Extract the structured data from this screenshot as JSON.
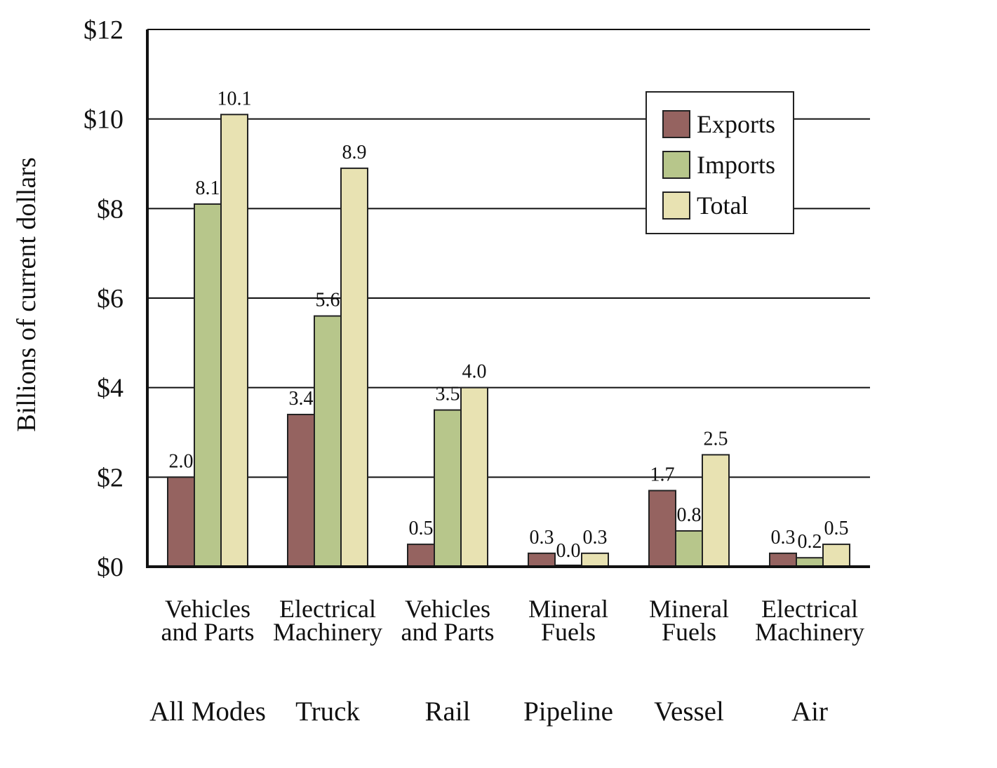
{
  "chart_data": {
    "type": "bar",
    "title": "",
    "ylabel": "Billions of current dollars",
    "ylim": [
      0,
      12
    ],
    "y_ticks": [
      0,
      2,
      4,
      6,
      8,
      10,
      12
    ],
    "y_tick_labels": [
      "$0",
      "$2",
      "$4",
      "$6",
      "$8",
      "$10",
      "$12"
    ],
    "grid": true,
    "legend_position": "top-right",
    "categories": [
      {
        "label_lines": [
          "Vehicles",
          "and Parts"
        ],
        "group": "All Modes"
      },
      {
        "label_lines": [
          "Electrical",
          "Machinery"
        ],
        "group": "Truck"
      },
      {
        "label_lines": [
          "Vehicles",
          "and Parts"
        ],
        "group": "Rail"
      },
      {
        "label_lines": [
          "Mineral",
          "Fuels"
        ],
        "group": "Pipeline"
      },
      {
        "label_lines": [
          "Mineral",
          "Fuels"
        ],
        "group": "Vessel"
      },
      {
        "label_lines": [
          "Electrical",
          "Machinery"
        ],
        "group": "Air"
      }
    ],
    "series": [
      {
        "name": "Exports",
        "color": "#956360",
        "values": [
          2.0,
          3.4,
          0.5,
          0.3,
          1.7,
          0.3
        ],
        "labels": [
          "2.0",
          "3.4",
          "0.5",
          "0.3",
          "1.7",
          "0.3"
        ]
      },
      {
        "name": "Imports",
        "color": "#b7c68b",
        "values": [
          8.1,
          5.6,
          3.5,
          0.0,
          0.8,
          0.2
        ],
        "labels": [
          "8.1",
          "5.6",
          "3.5",
          "0.0",
          "0.8",
          "0.2"
        ]
      },
      {
        "name": "Total",
        "color": "#e8e2b2",
        "values": [
          10.1,
          8.9,
          4.0,
          0.3,
          2.5,
          0.5
        ],
        "labels": [
          "10.1",
          "8.9",
          "4.0",
          "0.3",
          "2.5",
          "0.5"
        ]
      }
    ]
  }
}
